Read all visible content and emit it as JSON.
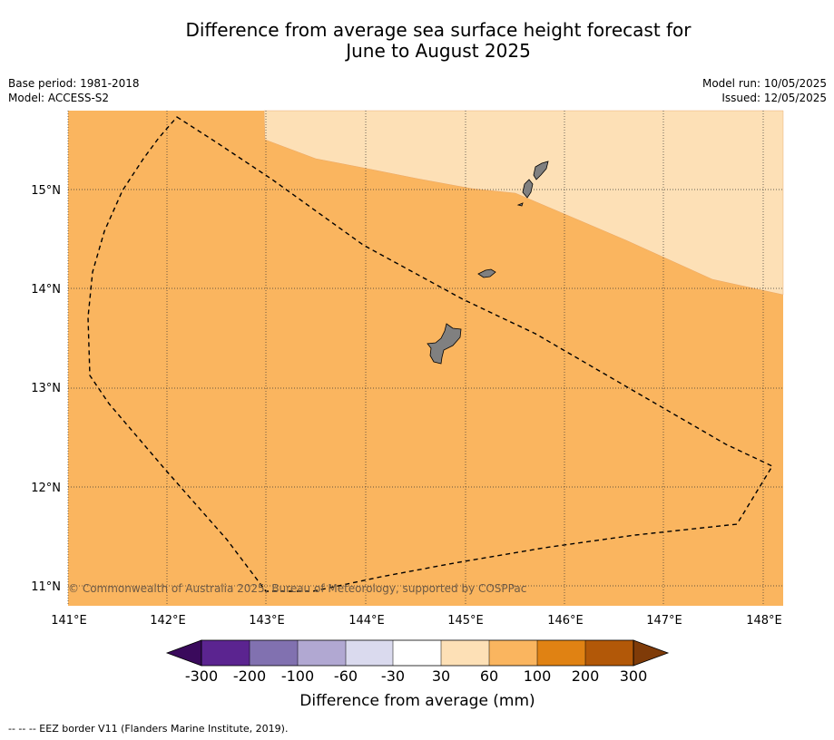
{
  "title": {
    "line1": "Difference from average sea surface height forecast for",
    "line2": "June to August 2025"
  },
  "meta": {
    "base_period": "Base period: 1981-2018",
    "model": "Model: ACCESS-S2",
    "model_run": "Model run: 10/05/2025",
    "issued": "Issued: 12/05/2025"
  },
  "map": {
    "lon_labels": [
      "141°E",
      "142°E",
      "143°E",
      "144°E",
      "145°E",
      "146°E",
      "147°E",
      "148°E"
    ],
    "lat_labels": [
      "15°N",
      "14°N",
      "13°N",
      "12°N",
      "11°N"
    ],
    "copyright": "© Commonwealth of Australia 2025, Bureau of Meteorology, supported by COSPPac",
    "regions": [
      {
        "range": "30 to 60",
        "color": "#fde0b6",
        "area": "north-east"
      },
      {
        "range": "60 to 100",
        "color": "#fab55f",
        "area": "rest of map"
      }
    ],
    "land_color": "#808080"
  },
  "colorbar": {
    "ticks": [
      "-300",
      "-200",
      "-100",
      "-60",
      "-30",
      "30",
      "60",
      "100",
      "200",
      "300"
    ],
    "colors": [
      "#3a0a5c",
      "#5b2490",
      "#8171b0",
      "#b1a8d2",
      "#dadaee",
      "#ffffff",
      "#fde0b6",
      "#fab55f",
      "#e08213",
      "#b25808",
      "#7f3b08"
    ],
    "label": "Difference from average (mm)"
  },
  "footnote": "--  --  -- EEZ border V11 (Flanders Marine Institute, 2019)."
}
